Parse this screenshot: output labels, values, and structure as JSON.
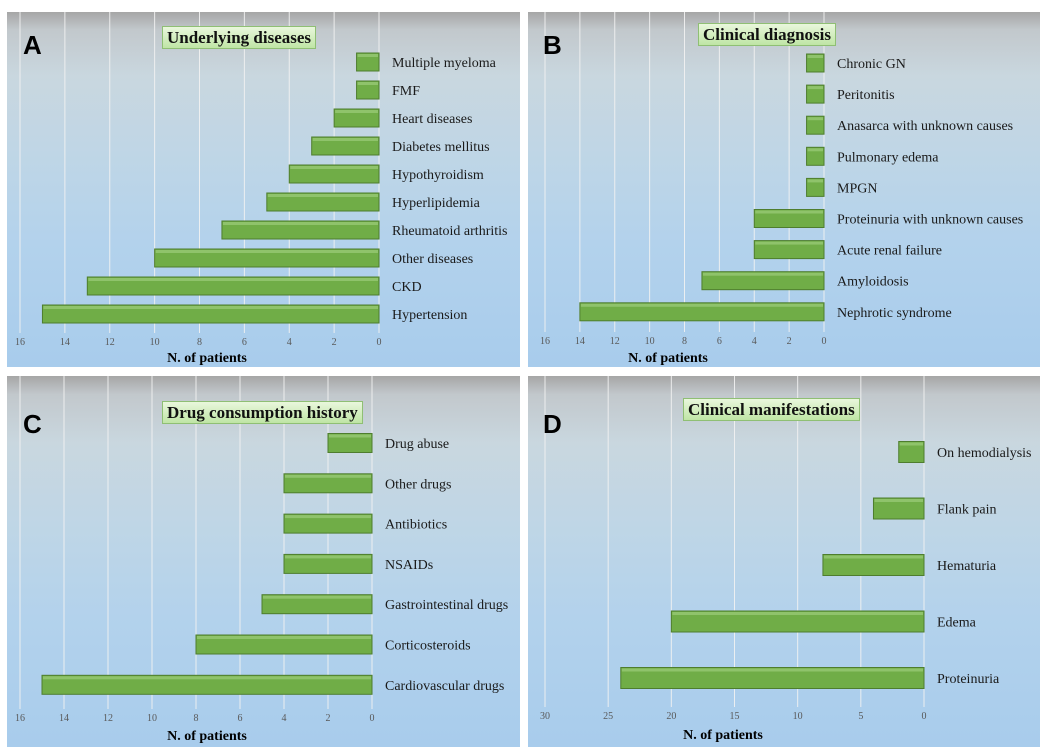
{
  "chart_data": [
    {
      "panel": "A",
      "type": "bar",
      "orientation": "horizontal",
      "title": "Underlying diseases",
      "xlabel": "N. of patients",
      "xlim": [
        0,
        16
      ],
      "ticks": [
        16,
        14,
        12,
        10,
        8,
        6,
        4,
        2,
        0
      ],
      "x_reversed": true,
      "categories": [
        "Multiple myeloma",
        "FMF",
        "Heart diseases",
        "Diabetes mellitus",
        "Hypothyroidism",
        "Hyperlipidemia",
        "Rheumatoid arthritis",
        "Other diseases",
        "CKD",
        "Hypertension"
      ],
      "values": [
        1,
        1,
        2,
        3,
        4,
        5,
        7,
        10,
        13,
        15
      ],
      "bar_color": "#70ad47"
    },
    {
      "panel": "B",
      "type": "bar",
      "orientation": "horizontal",
      "title": "Clinical diagnosis",
      "xlabel": "N. of patients",
      "xlim": [
        0,
        16
      ],
      "ticks": [
        16,
        14,
        12,
        10,
        8,
        6,
        4,
        2,
        0
      ],
      "x_reversed": true,
      "categories": [
        "Chronic GN",
        "Peritonitis",
        "Anasarca with unknown causes",
        "Pulmonary edema",
        "MPGN",
        "Proteinuria with unknown causes",
        "Acute renal failure",
        "Amyloidosis",
        "Nephrotic syndrome"
      ],
      "values": [
        1,
        1,
        1,
        1,
        1,
        4,
        4,
        7,
        14
      ],
      "bar_color": "#70ad47"
    },
    {
      "panel": "C",
      "type": "bar",
      "orientation": "horizontal",
      "title": "Drug consumption history",
      "xlabel": "N. of patients",
      "xlim": [
        0,
        16
      ],
      "ticks": [
        16,
        14,
        12,
        10,
        8,
        6,
        4,
        2,
        0
      ],
      "x_reversed": true,
      "categories": [
        "Drug abuse",
        "Other drugs",
        "Antibiotics",
        "NSAIDs",
        "Gastrointestinal drugs",
        "Corticosteroids",
        "Cardiovascular drugs"
      ],
      "values": [
        2,
        4,
        4,
        4,
        5,
        8,
        15
      ],
      "bar_color": "#70ad47"
    },
    {
      "panel": "D",
      "type": "bar",
      "orientation": "horizontal",
      "title": "Clinical manifestations",
      "xlabel": "N. of patients",
      "xlim": [
        0,
        30
      ],
      "ticks": [
        30,
        25,
        20,
        15,
        10,
        5,
        0
      ],
      "x_reversed": true,
      "categories": [
        "On hemodialysis",
        "Flank pain",
        "Hematuria",
        "Edema",
        "Proteinuria"
      ],
      "values": [
        2,
        4,
        8,
        20,
        24
      ],
      "bar_color": "#70ad47"
    }
  ]
}
